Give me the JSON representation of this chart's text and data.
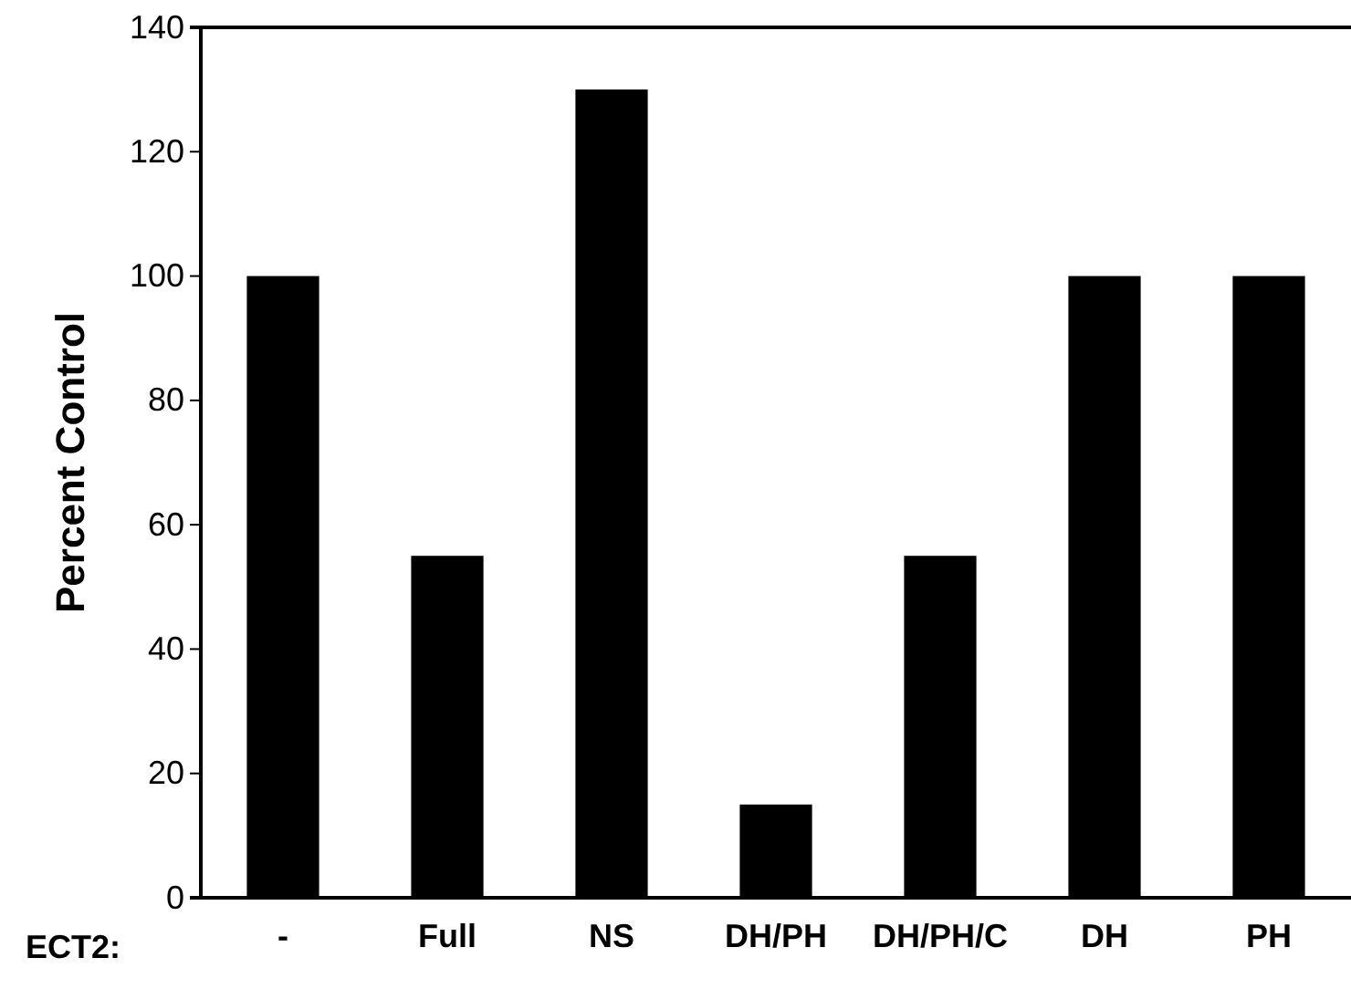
{
  "chart_data": {
    "type": "bar",
    "ylabel": "Percent Control",
    "xlabel": "ECT2:",
    "categories": [
      "-",
      "Full",
      "NS",
      "DH/PH",
      "DH/PH/C",
      "DH",
      "PH"
    ],
    "values": [
      100,
      55,
      130,
      15,
      55,
      100,
      100
    ],
    "color": "#000000",
    "ylim": [
      0,
      140
    ],
    "yticks": [
      0,
      20,
      40,
      60,
      80,
      100,
      120,
      140
    ],
    "grid": false
  }
}
